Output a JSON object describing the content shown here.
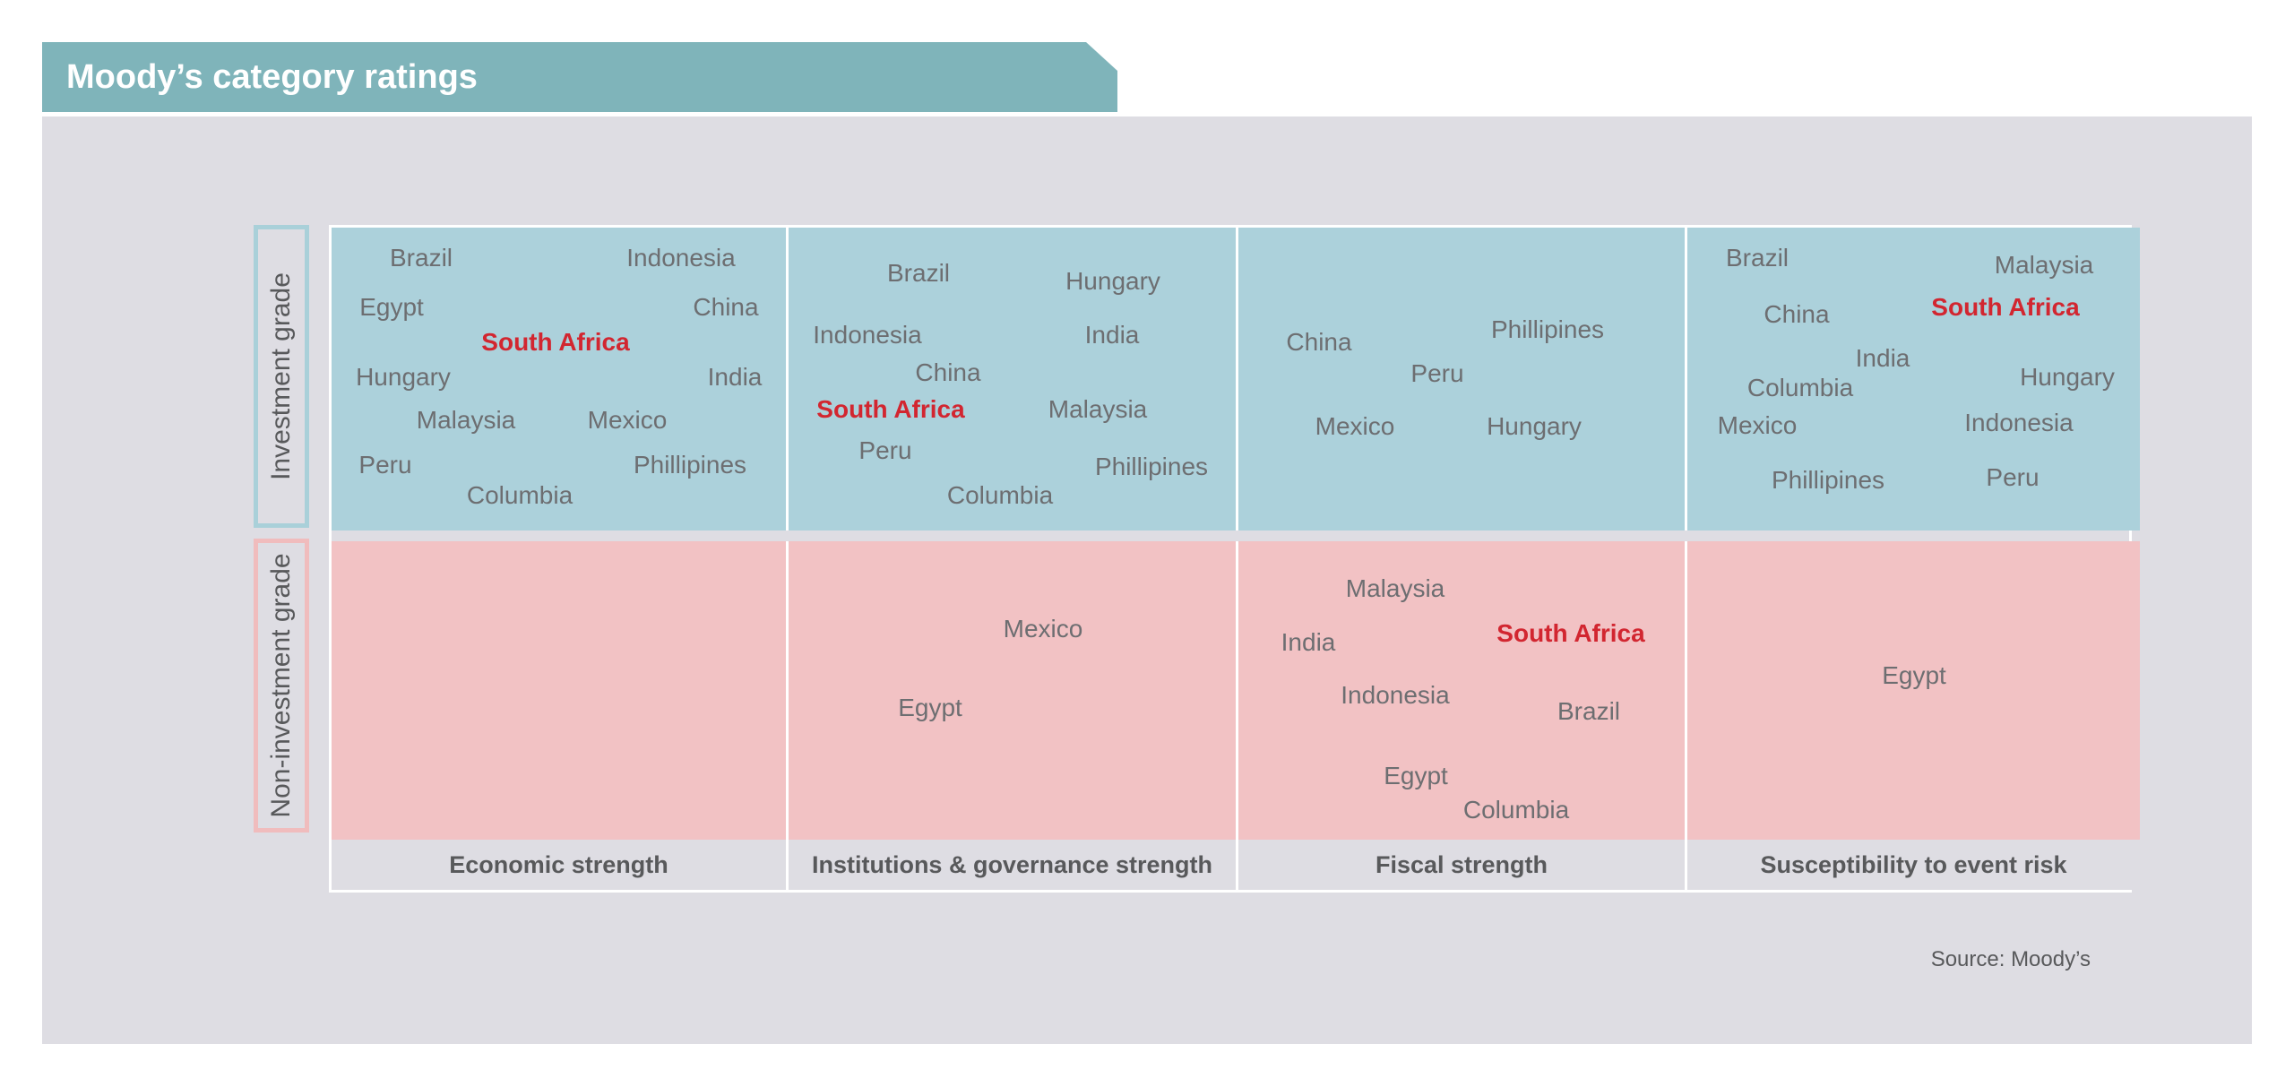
{
  "title": "Moody’s category ratings",
  "source": "Source: Moody’s",
  "colors": {
    "investment": "#acd1db",
    "non_investment": "#f2c2c4",
    "highlight": "#d22630",
    "text": "#6d6e71"
  },
  "chart_data": {
    "type": "table",
    "title": "Moody’s category ratings",
    "rows": [
      "Investment grade",
      "Non-investment grade"
    ],
    "columns": [
      {
        "label": "Economic strength",
        "investment": [
          {
            "name": "Brazil",
            "highlight": false
          },
          {
            "name": "Indonesia",
            "highlight": false
          },
          {
            "name": "Egypt",
            "highlight": false
          },
          {
            "name": "China",
            "highlight": false
          },
          {
            "name": "South Africa",
            "highlight": true
          },
          {
            "name": "Hungary",
            "highlight": false
          },
          {
            "name": "India",
            "highlight": false
          },
          {
            "name": "Malaysia",
            "highlight": false
          },
          {
            "name": "Mexico",
            "highlight": false
          },
          {
            "name": "Peru",
            "highlight": false
          },
          {
            "name": "Phillipines",
            "highlight": false
          },
          {
            "name": "Columbia",
            "highlight": false
          }
        ],
        "non_investment": []
      },
      {
        "label": "Institutions & governance strength",
        "investment": [
          {
            "name": "Brazil",
            "highlight": false
          },
          {
            "name": "Hungary",
            "highlight": false
          },
          {
            "name": "Indonesia",
            "highlight": false
          },
          {
            "name": "India",
            "highlight": false
          },
          {
            "name": "China",
            "highlight": false
          },
          {
            "name": "South Africa",
            "highlight": true
          },
          {
            "name": "Malaysia",
            "highlight": false
          },
          {
            "name": "Peru",
            "highlight": false
          },
          {
            "name": "Phillipines",
            "highlight": false
          },
          {
            "name": "Columbia",
            "highlight": false
          }
        ],
        "non_investment": [
          {
            "name": "Mexico",
            "highlight": false
          },
          {
            "name": "Egypt",
            "highlight": false
          }
        ]
      },
      {
        "label": "Fiscal strength",
        "investment": [
          {
            "name": "Phillipines",
            "highlight": false
          },
          {
            "name": "China",
            "highlight": false
          },
          {
            "name": "Peru",
            "highlight": false
          },
          {
            "name": "Mexico",
            "highlight": false
          },
          {
            "name": "Hungary",
            "highlight": false
          }
        ],
        "non_investment": [
          {
            "name": "Malaysia",
            "highlight": false
          },
          {
            "name": "India",
            "highlight": false
          },
          {
            "name": "South Africa",
            "highlight": true
          },
          {
            "name": "Indonesia",
            "highlight": false
          },
          {
            "name": "Brazil",
            "highlight": false
          },
          {
            "name": "Egypt",
            "highlight": false
          },
          {
            "name": "Columbia",
            "highlight": false
          }
        ]
      },
      {
        "label": "Susceptibility to event risk",
        "investment": [
          {
            "name": "Brazil",
            "highlight": false
          },
          {
            "name": "Malaysia",
            "highlight": false
          },
          {
            "name": "China",
            "highlight": false
          },
          {
            "name": "South Africa",
            "highlight": true
          },
          {
            "name": "India",
            "highlight": false
          },
          {
            "name": "Columbia",
            "highlight": false
          },
          {
            "name": "Hungary",
            "highlight": false
          },
          {
            "name": "Mexico",
            "highlight": false
          },
          {
            "name": "Indonesia",
            "highlight": false
          },
          {
            "name": "Phillipines",
            "highlight": false
          },
          {
            "name": "Peru",
            "highlight": false
          }
        ],
        "non_investment": [
          {
            "name": "Egypt",
            "highlight": false
          }
        ]
      }
    ]
  }
}
